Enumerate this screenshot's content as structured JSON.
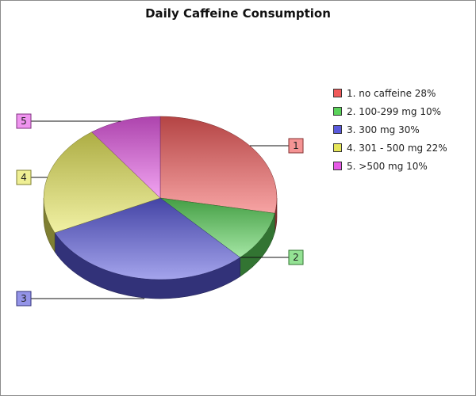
{
  "chart_data": {
    "type": "pie",
    "title": "Daily Caffeine Consumption",
    "slices": [
      {
        "index": "1",
        "label": "no caffeine",
        "value": 28,
        "legend": "1. no caffeine 28%",
        "color": "#f05a5a",
        "callout": "right-upper"
      },
      {
        "index": "2",
        "label": "100-299 mg",
        "value": 10,
        "legend": "2. 100-299 mg 10%",
        "color": "#5ad25a",
        "callout": "right-lower"
      },
      {
        "index": "3",
        "label": "300 mg",
        "value": 30,
        "legend": "3. 300 mg 30%",
        "color": "#5a5adc",
        "callout": "left-lower"
      },
      {
        "index": "4",
        "label": "301 - 500 mg",
        "value": 22,
        "legend": "4. 301 - 500 mg 22%",
        "color": "#e6e65a",
        "callout": "left-middle"
      },
      {
        "index": "5",
        "label": ">500 mg",
        "value": 10,
        "legend": "5. >500 mg 10%",
        "color": "#e65ae6",
        "callout": "left-upper"
      }
    ],
    "legend_position": "right",
    "style": "3d-pie"
  }
}
